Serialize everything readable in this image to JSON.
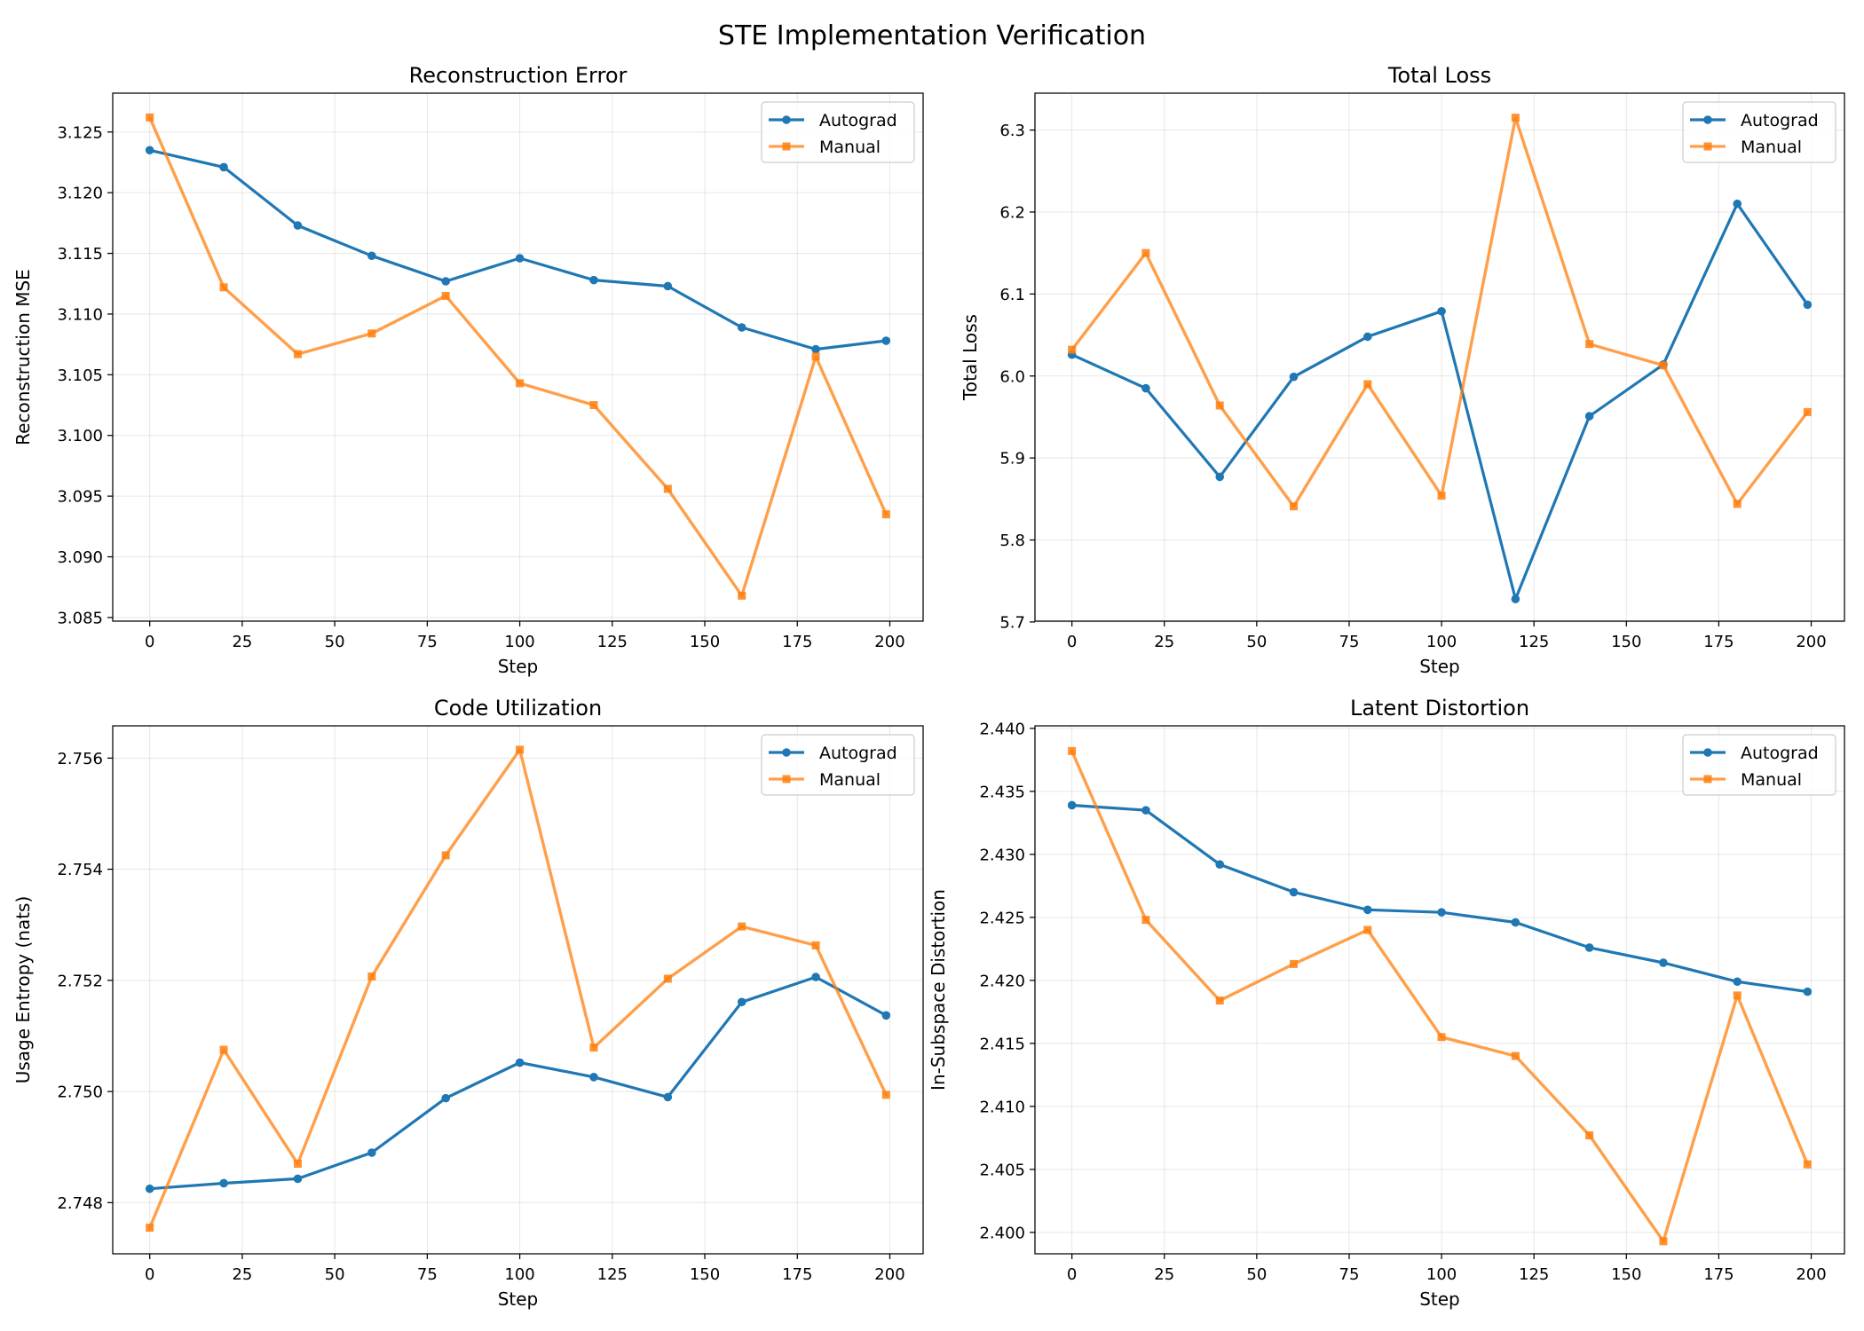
{
  "figure": {
    "title": "STE Implementation Verification"
  },
  "colors": {
    "autograd": "#1f77b4",
    "manual": "#ff7f0e"
  },
  "chart_data": [
    {
      "type": "line",
      "title": "Reconstruction Error",
      "xlabel": "Step",
      "ylabel": "Reconstruction MSE",
      "x": [
        0,
        20,
        40,
        60,
        80,
        100,
        120,
        140,
        160,
        180,
        199
      ],
      "xlim": [
        -10,
        209
      ],
      "ylim": [
        3.0847,
        3.1282
      ],
      "xticks": [
        0,
        25,
        50,
        75,
        100,
        125,
        150,
        175,
        200
      ],
      "yticks": [
        3.085,
        3.09,
        3.095,
        3.1,
        3.105,
        3.11,
        3.115,
        3.12,
        3.125
      ],
      "ytick_labels": [
        "3.085",
        "3.090",
        "3.095",
        "3.100",
        "3.105",
        "3.110",
        "3.115",
        "3.120",
        "3.125"
      ],
      "grid": true,
      "legend": "top-right",
      "series": [
        {
          "name": "Autograd",
          "marker": "circle",
          "values": [
            3.1235,
            3.1221,
            3.1173,
            3.1148,
            3.1127,
            3.1146,
            3.1128,
            3.1123,
            3.1089,
            3.1071,
            3.1078
          ]
        },
        {
          "name": "Manual",
          "marker": "square",
          "values": [
            3.1262,
            3.1122,
            3.1067,
            3.1084,
            3.1115,
            3.1043,
            3.1025,
            3.0956,
            3.0868,
            3.1065,
            3.0935
          ]
        }
      ]
    },
    {
      "type": "line",
      "title": "Total Loss",
      "xlabel": "Step",
      "ylabel": "Total Loss",
      "x": [
        0,
        20,
        40,
        60,
        80,
        100,
        120,
        140,
        160,
        180,
        199
      ],
      "xlim": [
        -10,
        209
      ],
      "ylim": [
        5.701,
        6.345
      ],
      "xticks": [
        0,
        25,
        50,
        75,
        100,
        125,
        150,
        175,
        200
      ],
      "yticks": [
        5.7,
        5.8,
        5.9,
        6.0,
        6.1,
        6.2,
        6.3
      ],
      "ytick_labels": [
        "5.7",
        "5.8",
        "5.9",
        "6.0",
        "6.1",
        "6.2",
        "6.3"
      ],
      "grid": true,
      "legend": "top-right",
      "series": [
        {
          "name": "Autograd",
          "marker": "circle",
          "values": [
            6.026,
            5.985,
            5.877,
            5.999,
            6.048,
            6.079,
            5.728,
            5.951,
            6.014,
            6.21,
            6.087
          ]
        },
        {
          "name": "Manual",
          "marker": "square",
          "values": [
            6.032,
            6.15,
            5.964,
            5.841,
            5.99,
            5.854,
            6.315,
            6.039,
            6.013,
            5.844,
            5.956
          ]
        }
      ]
    },
    {
      "type": "line",
      "title": "Code Utilization",
      "xlabel": "Step",
      "ylabel": "Usage Entropy (nats)",
      "x": [
        0,
        20,
        40,
        60,
        80,
        100,
        120,
        140,
        160,
        180,
        199
      ],
      "xlim": [
        -10,
        209
      ],
      "ylim": [
        2.74708,
        2.75658
      ],
      "xticks": [
        0,
        25,
        50,
        75,
        100,
        125,
        150,
        175,
        200
      ],
      "yticks": [
        2.748,
        2.75,
        2.752,
        2.754,
        2.756
      ],
      "ytick_labels": [
        "2.748",
        "2.750",
        "2.752",
        "2.754",
        "2.756"
      ],
      "grid": true,
      "legend": "top-right",
      "series": [
        {
          "name": "Autograd",
          "marker": "circle",
          "values": [
            2.74825,
            2.74835,
            2.74843,
            2.7489,
            2.74988,
            2.75052,
            2.75026,
            2.7499,
            2.75161,
            2.75206,
            2.75137
          ]
        },
        {
          "name": "Manual",
          "marker": "square",
          "values": [
            2.74755,
            2.75075,
            2.7487,
            2.75207,
            2.75425,
            2.75615,
            2.75079,
            2.75203,
            2.75297,
            2.75263,
            2.74994
          ]
        }
      ]
    },
    {
      "type": "line",
      "title": "Latent Distortion",
      "xlabel": "Step",
      "ylabel": "In-Subspace Distortion",
      "x": [
        0,
        20,
        40,
        60,
        80,
        100,
        120,
        140,
        160,
        180,
        199
      ],
      "xlim": [
        -10,
        209
      ],
      "ylim": [
        2.3983,
        2.4402
      ],
      "xticks": [
        0,
        25,
        50,
        75,
        100,
        125,
        150,
        175,
        200
      ],
      "yticks": [
        2.4,
        2.405,
        2.41,
        2.415,
        2.42,
        2.425,
        2.43,
        2.435,
        2.44
      ],
      "ytick_labels": [
        "2.400",
        "2.405",
        "2.410",
        "2.415",
        "2.420",
        "2.425",
        "2.430",
        "2.435",
        "2.440"
      ],
      "grid": true,
      "legend": "top-right",
      "series": [
        {
          "name": "Autograd",
          "marker": "circle",
          "values": [
            2.4339,
            2.4335,
            2.4292,
            2.427,
            2.4256,
            2.4254,
            2.4246,
            2.4226,
            2.4214,
            2.4199,
            2.4191
          ]
        },
        {
          "name": "Manual",
          "marker": "square",
          "values": [
            2.4382,
            2.4248,
            2.4184,
            2.4213,
            2.424,
            2.4155,
            2.414,
            2.4077,
            2.3993,
            2.4188,
            2.4054
          ]
        }
      ]
    }
  ]
}
